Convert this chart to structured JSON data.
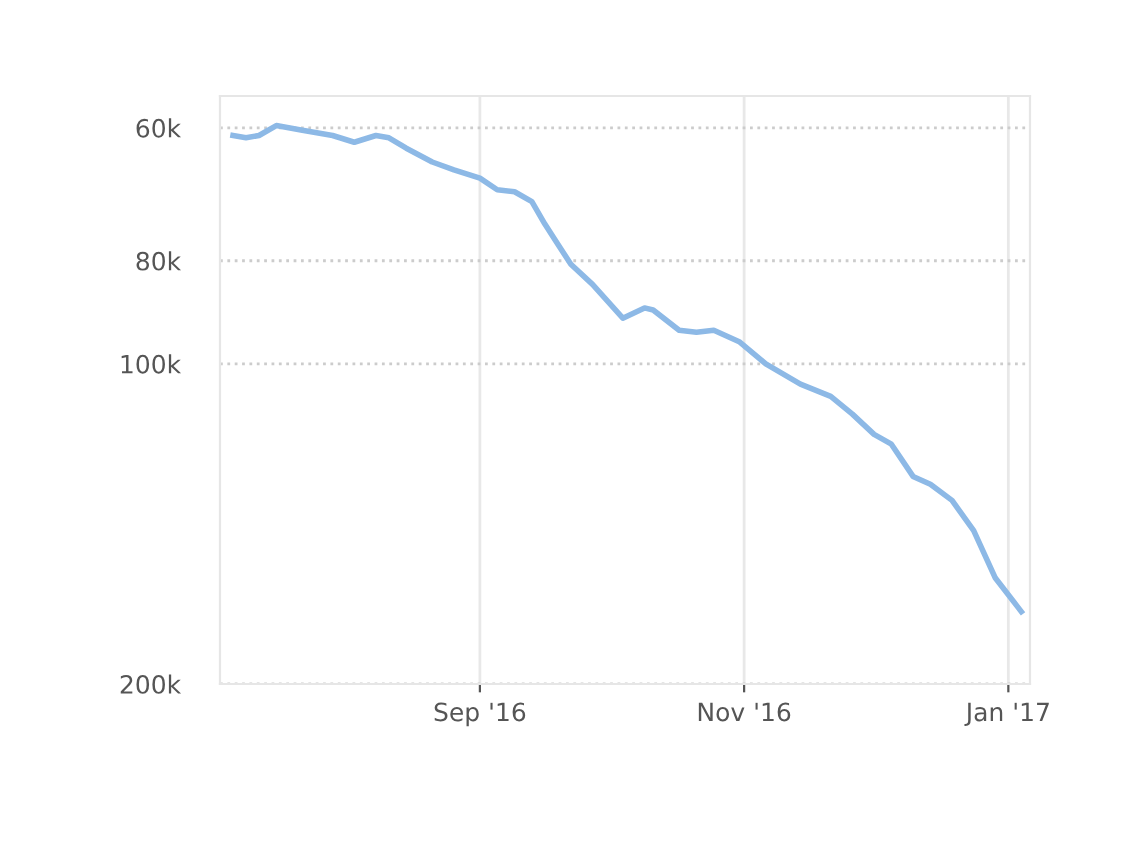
{
  "chart_data": {
    "type": "line",
    "x": [
      "2016-07-06",
      "2016-07-09",
      "2016-07-12",
      "2016-07-16",
      "2016-07-22",
      "2016-07-29",
      "2016-08-03",
      "2016-08-08",
      "2016-08-11",
      "2016-08-15",
      "2016-08-21",
      "2016-08-26",
      "2016-09-01",
      "2016-09-05",
      "2016-09-09",
      "2016-09-13",
      "2016-09-16",
      "2016-09-19",
      "2016-09-22",
      "2016-09-27",
      "2016-10-04",
      "2016-10-09",
      "2016-10-11",
      "2016-10-17",
      "2016-10-21",
      "2016-10-25",
      "2016-10-31",
      "2016-11-06",
      "2016-11-14",
      "2016-11-21",
      "2016-11-26",
      "2016-12-01",
      "2016-12-05",
      "2016-12-10",
      "2016-12-14",
      "2016-12-19",
      "2016-12-24",
      "2016-12-29",
      "2017-01-04"
    ],
    "series": [
      {
        "color": "#8db9e6",
        "values": [
          61000,
          61300,
          61000,
          59700,
          60300,
          61000,
          61900,
          61000,
          61300,
          62700,
          64600,
          65700,
          66900,
          68600,
          68900,
          70400,
          73900,
          77200,
          80600,
          84200,
          90600,
          88600,
          89000,
          93000,
          93400,
          93000,
          95400,
          100000,
          104500,
          107300,
          111500,
          116500,
          119000,
          127600,
          129800,
          134400,
          143500,
          159000,
          171000
        ]
      }
    ],
    "log": "y",
    "ylim": [
      200000,
      56000
    ],
    "yticks": [
      {
        "value": 60000,
        "label": "60k"
      },
      {
        "value": 80000,
        "label": "80k"
      },
      {
        "value": 100000,
        "label": "100k"
      },
      {
        "value": 200000,
        "label": "200k"
      }
    ],
    "xlim": [
      "2016-07-03",
      "2017-01-06"
    ],
    "xticks": [
      {
        "value": "2016-09-01",
        "label": "Sep '16"
      },
      {
        "value": "2016-11-01",
        "label": "Nov '16"
      },
      {
        "value": "2017-01-01",
        "label": "Jan '17"
      }
    ],
    "grid": true,
    "line_style": "solid",
    "marker": "none"
  }
}
